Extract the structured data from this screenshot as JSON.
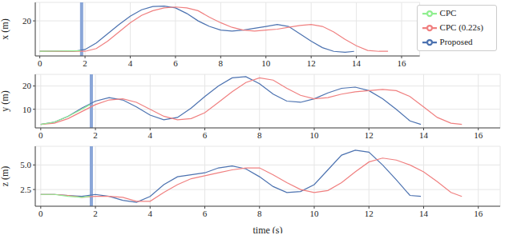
{
  "chart_data": [
    {
      "type": "line",
      "y_label": "x (m)",
      "xlim": [
        -0.2,
        16.8
      ],
      "xticks": [
        0,
        2,
        4,
        6,
        8,
        10,
        12,
        14,
        16
      ],
      "ylim": [
        1,
        30
      ],
      "yticks": [
        20
      ],
      "grid": true,
      "legend": "upper right",
      "vline_x": 1.85,
      "series": [
        {
          "name": "Proposed",
          "color": "#4c72b0",
          "x": [
            0,
            0.5,
            1,
            1.5,
            2,
            2.5,
            3,
            3.5,
            4,
            4.5,
            5,
            5.5,
            6,
            6.5,
            7,
            7.5,
            8,
            8.5,
            9,
            9.5,
            10,
            10.5,
            11,
            11.5,
            12,
            12.5,
            13,
            13.5,
            13.9
          ],
          "values": [
            3.5,
            3.5,
            3.5,
            3.5,
            4.5,
            8,
            13,
            18,
            22.5,
            26,
            27.8,
            28,
            27,
            24,
            20,
            17,
            15,
            14.5,
            15,
            16,
            17,
            18,
            17,
            13,
            9,
            5.5,
            3.5,
            3,
            3.5
          ]
        },
        {
          "name": "CPC (0.22s)",
          "color": "#f08080",
          "x": [
            0,
            0.5,
            1,
            1.5,
            2,
            2.5,
            3,
            3.5,
            4,
            4.5,
            5,
            5.5,
            6,
            6.5,
            7,
            7.5,
            8,
            8.5,
            9,
            9.5,
            10,
            10.5,
            11,
            11.5,
            12,
            12.5,
            13,
            13.5,
            14,
            14.5,
            15,
            15.4
          ],
          "values": [
            3.5,
            3.5,
            3.5,
            3.5,
            3.5,
            5,
            9,
            14,
            19,
            23,
            25.5,
            27,
            27.5,
            27,
            25.5,
            22,
            19,
            16.5,
            15,
            14.5,
            15,
            15.5,
            16.5,
            17.5,
            18,
            17,
            14,
            10,
            6.5,
            4,
            3.5,
            3.5
          ]
        },
        {
          "name": "CPC",
          "color": "#90ee90",
          "x": [
            0,
            0.5,
            1,
            1.5,
            1.8
          ],
          "values": [
            3.5,
            3.6,
            3.7,
            3.8,
            3.9
          ]
        }
      ]
    },
    {
      "type": "line",
      "y_label": "y (m)",
      "xlim": [
        -0.2,
        16.8
      ],
      "xticks": [
        0,
        2,
        4,
        6,
        8,
        10,
        12,
        14,
        16
      ],
      "ylim": [
        2,
        25
      ],
      "yticks": [
        10,
        20
      ],
      "grid": true,
      "vline_x": 1.85,
      "series": [
        {
          "name": "Proposed",
          "color": "#4c72b0",
          "x": [
            0,
            0.5,
            1,
            1.5,
            2,
            2.5,
            3,
            3.5,
            4,
            4.5,
            5,
            5.5,
            6,
            6.5,
            7,
            7.5,
            8,
            8.5,
            9,
            9.5,
            10,
            10.5,
            11,
            11.5,
            12,
            12.5,
            13,
            13.5,
            13.9
          ],
          "values": [
            3.5,
            4.5,
            7,
            10.5,
            13.5,
            15,
            14,
            11,
            7.5,
            5.5,
            6.5,
            10.5,
            15.5,
            20,
            23.5,
            24,
            21,
            16.5,
            13.5,
            13,
            14.5,
            17,
            19,
            19.5,
            18,
            14.5,
            10,
            5,
            3.5
          ]
        },
        {
          "name": "CPC (0.22s)",
          "color": "#f08080",
          "x": [
            0,
            0.5,
            1,
            1.5,
            2,
            2.5,
            3,
            3.5,
            4,
            4.5,
            5,
            5.5,
            6,
            6.5,
            7,
            7.5,
            8,
            8.5,
            9,
            9.5,
            10,
            10.5,
            11,
            11.5,
            12,
            12.5,
            13,
            13.5,
            14,
            14.5,
            15,
            15.4
          ],
          "values": [
            3.5,
            4,
            6,
            9,
            12,
            14,
            14.5,
            13,
            10,
            7,
            5.5,
            6,
            8.5,
            13,
            17.5,
            21.5,
            23.5,
            22.5,
            19,
            16,
            14.5,
            15,
            16.5,
            17.5,
            18,
            18.5,
            18,
            15.5,
            11,
            6.5,
            4,
            3.5
          ]
        },
        {
          "name": "CPC",
          "color": "#90ee90",
          "x": [
            0,
            0.5,
            1,
            1.5,
            1.8
          ],
          "values": [
            3.5,
            4.5,
            7,
            10,
            12
          ]
        }
      ]
    },
    {
      "type": "line",
      "y_label": "z (m)",
      "x_label": "time (s)",
      "xlim": [
        -0.2,
        16.8
      ],
      "xticks": [
        0,
        2,
        4,
        6,
        8,
        10,
        12,
        14,
        16
      ],
      "ylim": [
        0.8,
        6.9
      ],
      "yticks": [
        2.5,
        {
          "value": 5,
          "label": "5.0"
        }
      ],
      "grid": true,
      "vline_x": 1.85,
      "series": [
        {
          "name": "Proposed",
          "color": "#4c72b0",
          "x": [
            0,
            0.5,
            1,
            1.5,
            2,
            2.5,
            3,
            3.5,
            4,
            4.5,
            5,
            5.5,
            6,
            6.5,
            7,
            7.5,
            8,
            8.5,
            9,
            9.5,
            10,
            10.5,
            11,
            11.5,
            12,
            12.5,
            13,
            13.5,
            13.9
          ],
          "values": [
            2,
            2,
            1.9,
            1.8,
            2,
            1.8,
            1.4,
            1.2,
            1.8,
            3,
            3.8,
            4,
            4.2,
            4.7,
            4.9,
            4.6,
            3.8,
            2.8,
            2.2,
            2.3,
            3,
            4.5,
            6,
            6.5,
            6.3,
            5,
            3.5,
            1.9,
            1.8
          ]
        },
        {
          "name": "CPC (0.22s)",
          "color": "#f08080",
          "x": [
            0,
            0.5,
            1,
            1.5,
            2,
            2.5,
            3,
            3.5,
            4,
            4.5,
            5,
            5.5,
            6,
            6.5,
            7,
            7.5,
            8,
            8.5,
            9,
            9.5,
            10,
            10.5,
            11,
            11.5,
            12,
            12.5,
            13,
            13.5,
            14,
            14.5,
            15,
            15.4
          ],
          "values": [
            2,
            2,
            1.9,
            1.7,
            1.8,
            1.8,
            1.7,
            1.3,
            1.3,
            2.2,
            3,
            3.6,
            3.9,
            4.2,
            4.5,
            4.7,
            4.7,
            4,
            3.2,
            2.5,
            2.2,
            2.4,
            3.2,
            4.3,
            5.3,
            5.7,
            5.5,
            5,
            4.3,
            3.3,
            2.2,
            1.8
          ]
        },
        {
          "name": "CPC",
          "color": "#90ee90",
          "x": [
            0,
            0.5,
            1,
            1.5,
            1.8
          ],
          "values": [
            2,
            2,
            1.8,
            1.7,
            1.8
          ]
        }
      ]
    }
  ]
}
